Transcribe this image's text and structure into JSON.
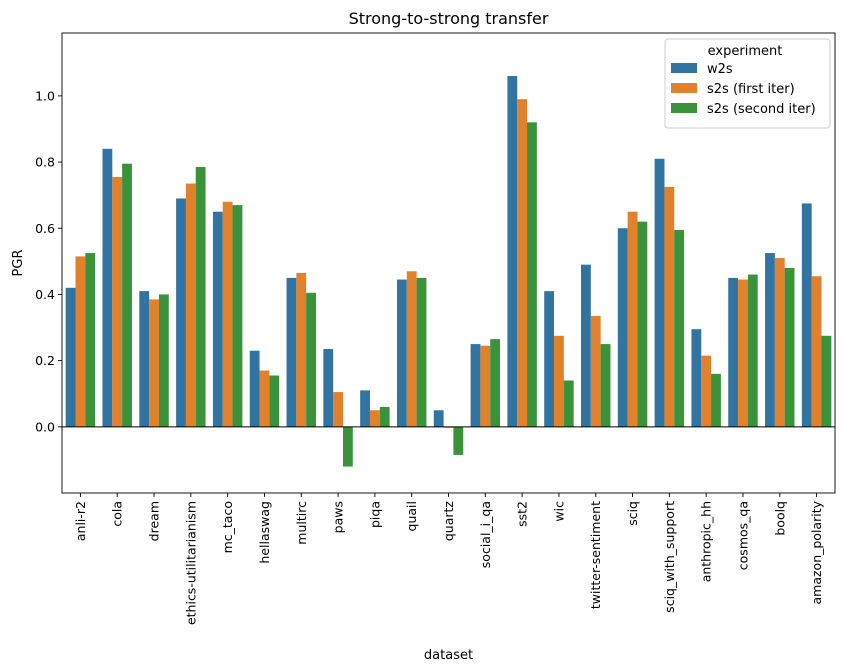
{
  "chart_data": {
    "type": "bar",
    "title": "Strong-to-strong transfer",
    "xlabel": "dataset",
    "ylabel": "PGR",
    "ylim": [
      -0.2,
      1.19
    ],
    "yticks": [
      0.0,
      0.2,
      0.4,
      0.6,
      0.8,
      1.0
    ],
    "ytick_labels": [
      "0.0",
      "0.2",
      "0.4",
      "0.6",
      "0.8",
      "1.0"
    ],
    "grid": false,
    "legend": {
      "title": "experiment",
      "position": "top-right"
    },
    "categories": [
      "anli-r2",
      "cola",
      "dream",
      "ethics-utilitarianism",
      "mc_taco",
      "hellaswag",
      "multirc",
      "paws",
      "piqa",
      "quail",
      "quartz",
      "social_i_qa",
      "sst2",
      "wic",
      "twitter-sentiment",
      "sciq",
      "sciq_with_support",
      "anthropic_hh",
      "cosmos_qa",
      "boolq",
      "amazon_polarity"
    ],
    "series": [
      {
        "name": "w2s",
        "color": "#3274a1",
        "values": [
          0.42,
          0.84,
          0.41,
          0.69,
          0.65,
          0.23,
          0.45,
          0.235,
          0.11,
          0.445,
          0.05,
          0.25,
          1.06,
          0.41,
          0.49,
          0.6,
          0.81,
          0.295,
          0.45,
          0.525,
          0.675
        ]
      },
      {
        "name": "s2s (first iter)",
        "color": "#e1812c",
        "values": [
          0.515,
          0.755,
          0.385,
          0.735,
          0.68,
          0.17,
          0.465,
          0.105,
          0.05,
          0.47,
          -0.003,
          0.245,
          0.99,
          0.275,
          0.335,
          0.65,
          0.725,
          0.215,
          0.445,
          0.51,
          0.455
        ]
      },
      {
        "name": "s2s (second iter)",
        "color": "#3a923a",
        "values": [
          0.525,
          0.795,
          0.4,
          0.785,
          0.67,
          0.155,
          0.405,
          -0.12,
          0.06,
          0.45,
          -0.085,
          0.265,
          0.92,
          0.14,
          0.25,
          0.62,
          0.595,
          0.16,
          0.46,
          0.48,
          0.275
        ]
      }
    ]
  }
}
